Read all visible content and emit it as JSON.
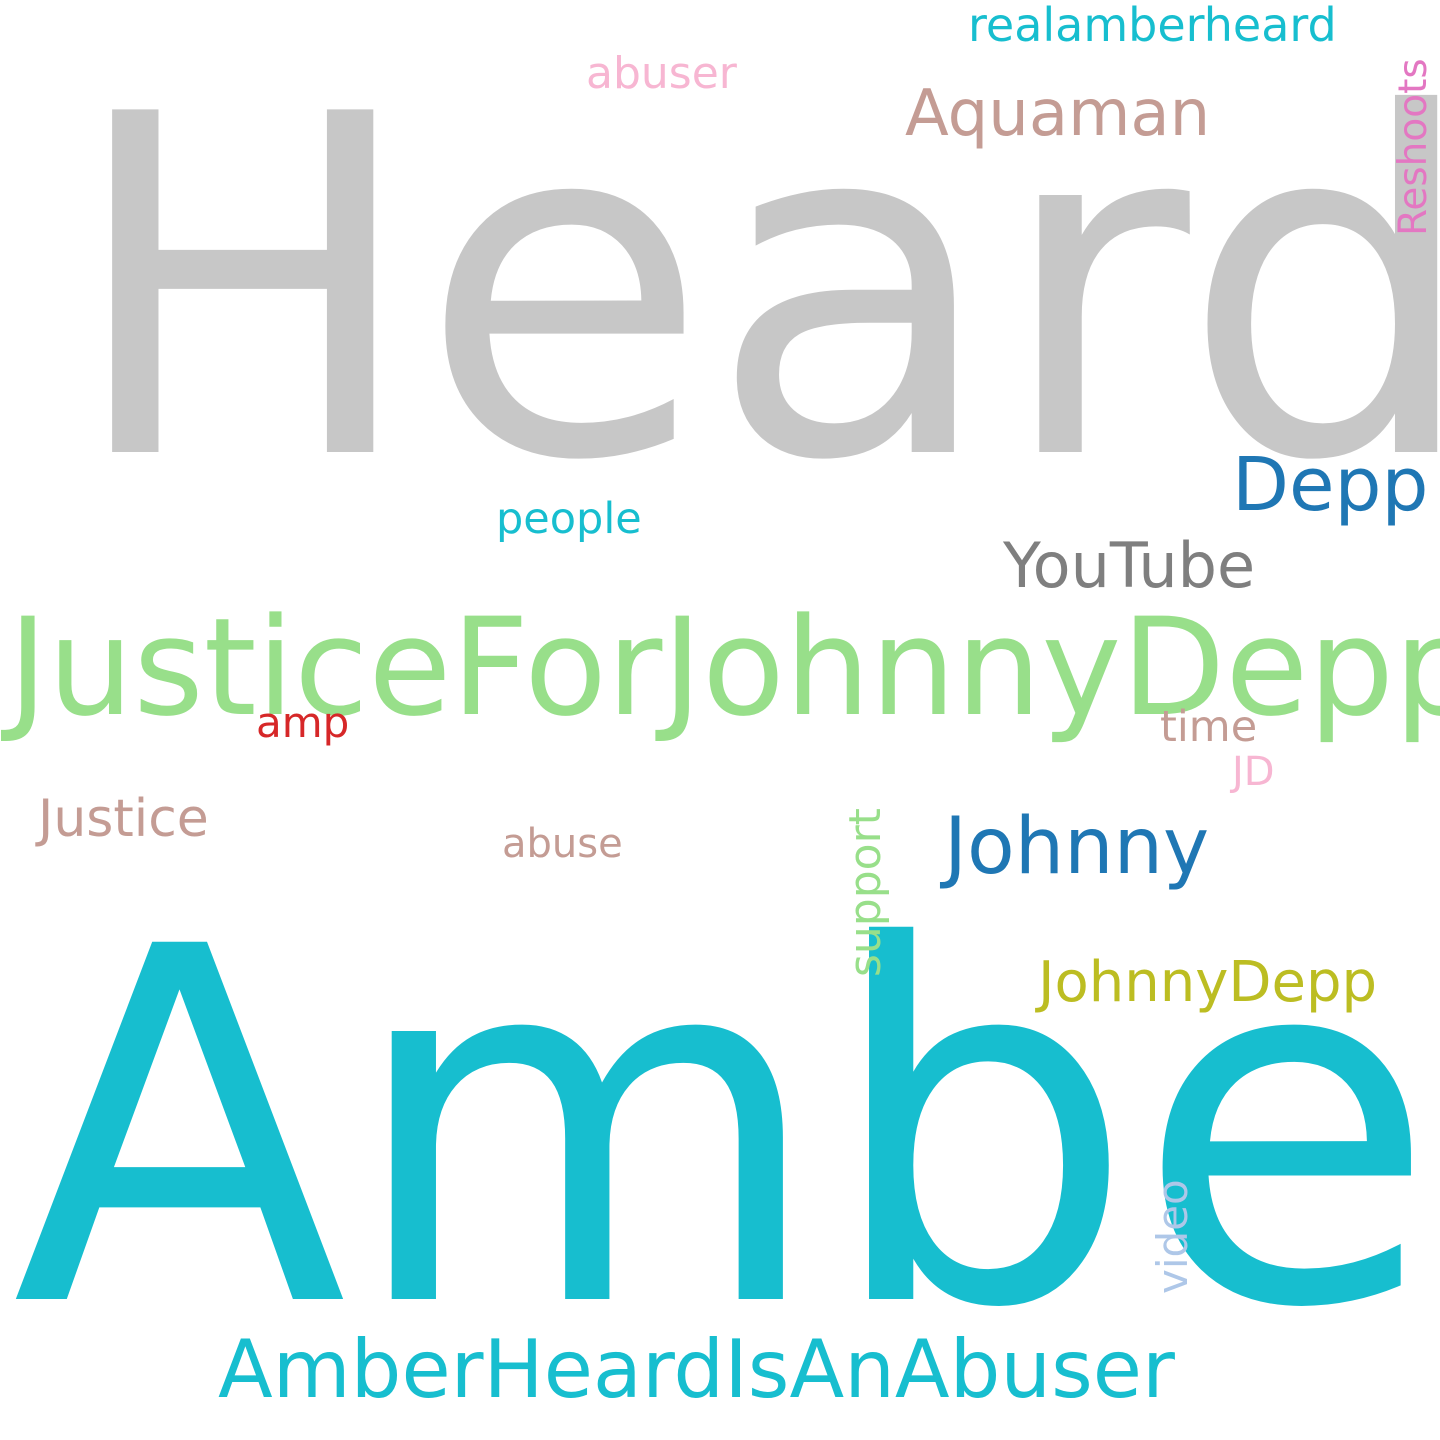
{
  "words": {
    "heard": {
      "text": "Heard",
      "color": "#c7c7c7"
    },
    "amber": {
      "text": "Amber",
      "color": "#17becf"
    },
    "justicefor": {
      "text": "JusticeForJohnnyDepp",
      "color": "#98df8a"
    },
    "amberheardisabuser": {
      "text": "AmberHeardIsAnAbuser",
      "color": "#17becf"
    },
    "depp": {
      "text": "Depp",
      "color": "#1f77b4"
    },
    "johnny": {
      "text": "Johnny",
      "color": "#1f77b4"
    },
    "youtube": {
      "text": "YouTube",
      "color": "#7f7f7f"
    },
    "aquaman": {
      "text": "Aquaman",
      "color": "#c49c94"
    },
    "realamberheard": {
      "text": "realamberheard",
      "color": "#17becf"
    },
    "abuser": {
      "text": "abuser",
      "color": "#f7b6d2"
    },
    "people": {
      "text": "people",
      "color": "#17becf"
    },
    "amp": {
      "text": "amp",
      "color": "#d62728"
    },
    "time": {
      "text": "time",
      "color": "#c49c94"
    },
    "jd": {
      "text": "JD",
      "color": "#f7b6d2"
    },
    "justice": {
      "text": "Justice",
      "color": "#c49c94"
    },
    "abuse": {
      "text": "abuse",
      "color": "#c49c94"
    },
    "johnnydepp": {
      "text": "JohnnyDepp",
      "color": "#bcbd22"
    },
    "support": {
      "text": "support",
      "color": "#98df8a"
    },
    "reshoots": {
      "text": "Reshoots",
      "color": "#e377c2"
    },
    "video": {
      "text": "video",
      "color": "#aec7e8"
    }
  }
}
